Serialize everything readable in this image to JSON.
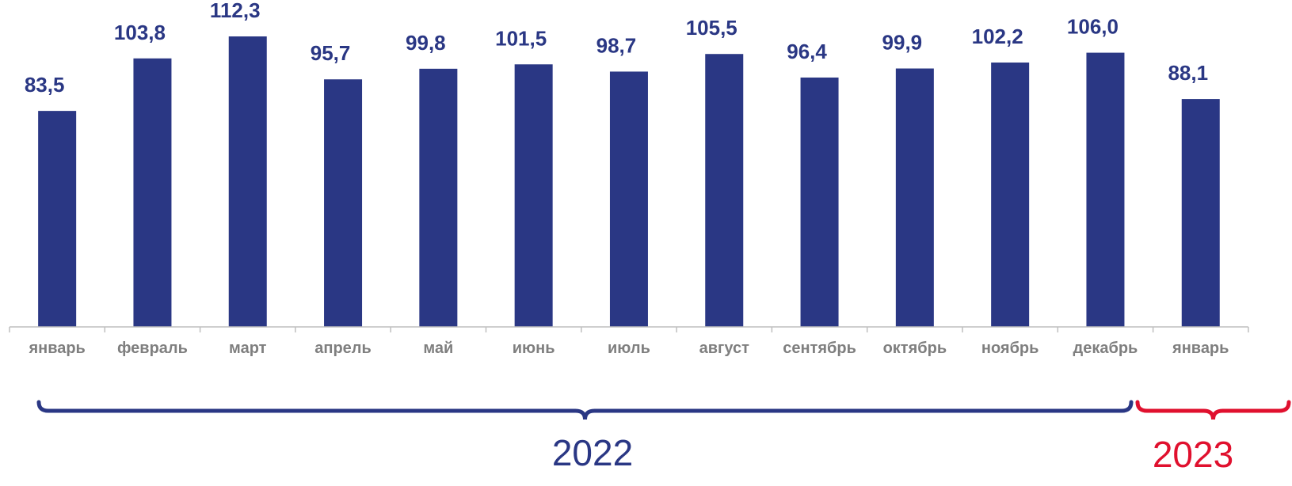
{
  "chart_data": {
    "type": "bar",
    "categories": [
      "январь",
      "февраль",
      "март",
      "апрель",
      "май",
      "июнь",
      "июль",
      "август",
      "сентябрь",
      "октябрь",
      "ноябрь",
      "декабрь",
      "январь"
    ],
    "values": [
      83.5,
      103.8,
      112.3,
      95.7,
      99.8,
      101.5,
      98.7,
      105.5,
      96.4,
      99.9,
      102.2,
      106.0,
      88.1
    ],
    "value_labels": [
      "83,5",
      "103,8",
      "112,3",
      "95,7",
      "99,8",
      "101,5",
      "98,7",
      "105,5",
      "96,4",
      "99,9",
      "102,2",
      "106,0",
      "88,1"
    ],
    "ylim": [
      0,
      112.3
    ],
    "grid": false,
    "legend": "none",
    "groups": [
      {
        "label": "2022",
        "from_index": 0,
        "to_index": 11,
        "color": "#2a3784"
      },
      {
        "label": "2023",
        "from_index": 12,
        "to_index": 12,
        "color": "#e0102e"
      }
    ],
    "colors": {
      "bar": "#2a3784",
      "value_label": "#2a3784",
      "category_label": "#7f7f7f",
      "axis": "#bfbfbf"
    }
  }
}
